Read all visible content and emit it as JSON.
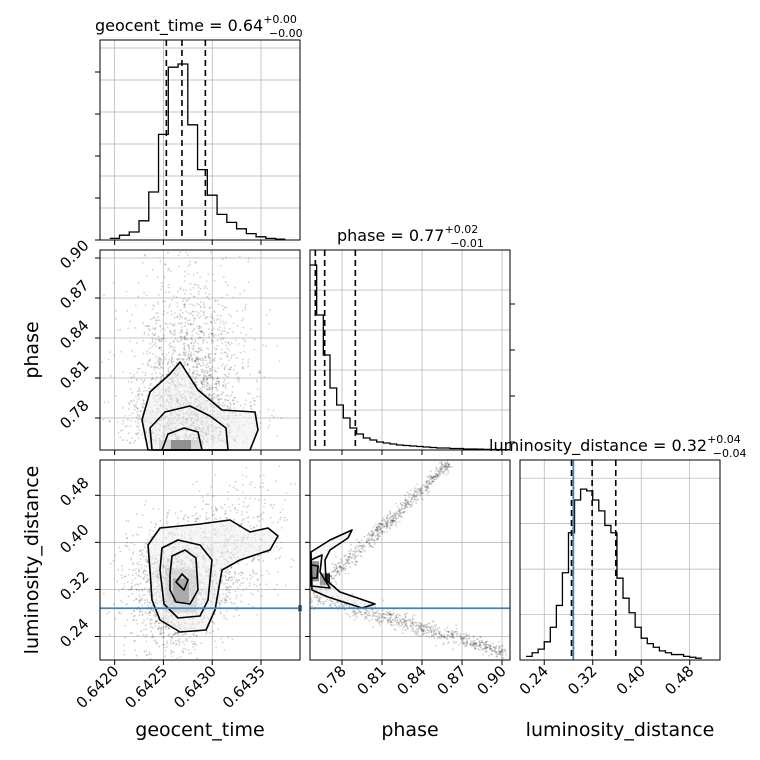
{
  "chart_data": [
    {
      "type": "histogram",
      "panel": "geocent_time",
      "title": {
        "prefix": "geocent_time = ",
        "value": "0.64",
        "upper": "+0.00",
        "lower": "−0.00"
      },
      "xlim": [
        0.64185,
        0.6439
      ],
      "x_ticks": [
        "0.6420",
        "0.6425",
        "0.6430",
        "0.6435"
      ],
      "x_tick_values": [
        0.642,
        0.6425,
        0.643,
        0.6435
      ],
      "xlabel": "geocent_time",
      "quantiles": [
        0.64253,
        0.64269,
        0.64293
      ],
      "bin_edges": [
        0.64195,
        0.64205,
        0.64215,
        0.64225,
        0.64235,
        0.64245,
        0.64255,
        0.64265,
        0.64275,
        0.64285,
        0.64295,
        0.64305,
        0.64315,
        0.64325,
        0.64335,
        0.64345,
        0.64355,
        0.64365,
        0.64375
      ],
      "counts": [
        1,
        3,
        5,
        12,
        30,
        66,
        108,
        110,
        72,
        44,
        28,
        16,
        11,
        7,
        4,
        2,
        1,
        0.5
      ],
      "ymax": 125
    },
    {
      "type": "histogram",
      "panel": "phase",
      "title": {
        "prefix": "phase = ",
        "value": "0.77",
        "upper": "+0.02",
        "lower": "−0.01"
      },
      "xlim": [
        0.756,
        0.906
      ],
      "x_ticks": [
        "0.78",
        "0.81",
        "0.84",
        "0.87",
        "0.90"
      ],
      "x_tick_values": [
        0.78,
        0.81,
        0.84,
        0.87,
        0.9
      ],
      "xlabel": "phase",
      "quantiles": [
        0.76,
        0.767,
        0.79
      ],
      "bin_edges": [
        0.756,
        0.761,
        0.766,
        0.771,
        0.776,
        0.781,
        0.786,
        0.791,
        0.796,
        0.801,
        0.806,
        0.811,
        0.816,
        0.821,
        0.826,
        0.831,
        0.836,
        0.841,
        0.846,
        0.851,
        0.856,
        0.861,
        0.866,
        0.871,
        0.876,
        0.881,
        0.886,
        0.891,
        0.896,
        0.901,
        0.906
      ],
      "counts": [
        185,
        135,
        95,
        62,
        45,
        32,
        22,
        16,
        12,
        10,
        8,
        7,
        6,
        5,
        4.5,
        4,
        3.5,
        3,
        2.5,
        2,
        2,
        1.5,
        1.5,
        1,
        1,
        0.8,
        0.6,
        0.5,
        0.4,
        0.3
      ],
      "ymax": 200
    },
    {
      "type": "histogram",
      "panel": "luminosity_distance",
      "title": {
        "prefix": "luminosity_distance = ",
        "value": "0.32",
        "upper": "+0.04",
        "lower": "−0.04"
      },
      "xlim": [
        0.2,
        0.53
      ],
      "x_ticks": [
        "0.24",
        "0.32",
        "0.40",
        "0.48"
      ],
      "x_tick_values": [
        0.24,
        0.32,
        0.4,
        0.48
      ],
      "xlabel": "luminosity_distance",
      "quantiles": [
        0.285,
        0.319,
        0.358
      ],
      "truth": 0.288,
      "bin_edges": [
        0.21,
        0.22,
        0.23,
        0.24,
        0.25,
        0.26,
        0.27,
        0.28,
        0.29,
        0.3,
        0.31,
        0.32,
        0.33,
        0.34,
        0.35,
        0.36,
        0.37,
        0.38,
        0.39,
        0.4,
        0.41,
        0.42,
        0.43,
        0.44,
        0.45,
        0.46,
        0.47,
        0.48,
        0.49,
        0.5
      ],
      "counts": [
        2,
        4,
        6,
        10,
        18,
        30,
        48,
        70,
        88,
        94,
        93,
        88,
        82,
        74,
        70,
        45,
        34,
        26,
        18,
        12,
        9,
        7,
        5,
        4,
        3,
        3,
        2,
        1.5,
        1
      ],
      "ymax": 110
    },
    {
      "type": "scatter",
      "panel": "phase vs geocent_time",
      "xlim": [
        0.64185,
        0.6439
      ],
      "ylim": [
        0.756,
        0.906
      ],
      "y_ticks": [
        "0.78",
        "0.81",
        "0.84",
        "0.87",
        "0.90"
      ],
      "y_tick_values": [
        0.78,
        0.81,
        0.84,
        0.87,
        0.9
      ],
      "ylabel": "phase",
      "peak": [
        0.64268,
        0.761
      ]
    },
    {
      "type": "scatter",
      "panel": "luminosity_distance vs geocent_time",
      "xlim": [
        0.64185,
        0.6439
      ],
      "ylim": [
        0.2,
        0.54
      ],
      "y_ticks": [
        "0.24",
        "0.32",
        "0.40",
        "0.48"
      ],
      "y_tick_values": [
        0.24,
        0.32,
        0.4,
        0.48
      ],
      "ylabel": "luminosity_distance",
      "truth_y": 0.288,
      "peak": [
        0.64268,
        0.318
      ]
    },
    {
      "type": "scatter",
      "panel": "luminosity_distance vs phase",
      "xlim": [
        0.756,
        0.906
      ],
      "ylim": [
        0.2,
        0.54
      ],
      "truth_y": 0.288,
      "peak": [
        0.759,
        0.31
      ]
    }
  ],
  "colors": {
    "truth": "#4682b4",
    "ink": "#000000",
    "grid": "#b0b0b0"
  }
}
